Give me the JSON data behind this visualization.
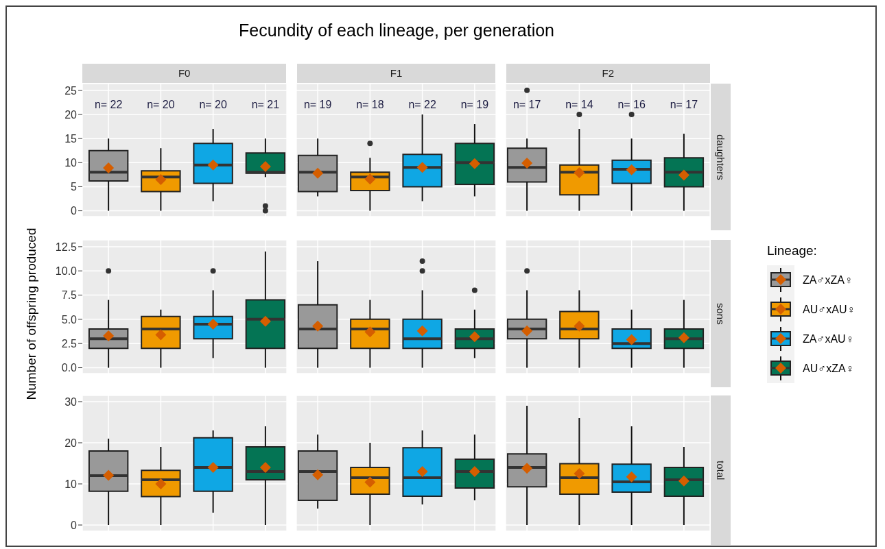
{
  "chart_data": [
    {
      "type": "box",
      "title": "Fecundity of each lineage, per generation",
      "y2label": "daughters",
      "categories": [
        null,
        null,
        null,
        null,
        null,
        null,
        null,
        null,
        null,
        null,
        null,
        null
      ],
      "ylim": [
        -1.2,
        26.4
      ],
      "yticks": [
        0,
        5,
        10,
        15,
        20,
        25
      ],
      "grid": true,
      "annotations": [
        "F0",
        "F1",
        "F2",
        "n= 22",
        "n= 20",
        "n= 20",
        "n= 21",
        "n= 19",
        "n= 18",
        "n= 22",
        "n= 19",
        "n= 17",
        "n= 14",
        "n= 16",
        "n= 17"
      ],
      "series": [
        {
          "color": "#999999",
          "boxes": [
            {
              "low": 0,
              "q1": 6.2,
              "median": 8,
              "q3": 12.5,
              "high": 15,
              "mean": 8.9
            },
            null,
            null,
            null,
            {
              "low": 3,
              "q1": 4,
              "median": 8,
              "q3": 11.5,
              "high": 15,
              "mean": 7.8
            },
            null,
            null,
            null,
            {
              "low": 0,
              "q1": 6,
              "median": 9,
              "q3": 13,
              "high": 15,
              "mean": 9.9,
              "outliers": [
                25
              ]
            },
            null,
            null,
            null
          ]
        },
        {
          "color": "#f09a00",
          "boxes": [
            null,
            {
              "low": 0,
              "q1": 4,
              "median": 7,
              "q3": 8.3,
              "high": 13,
              "mean": 6.5
            },
            null,
            null,
            null,
            {
              "low": 0,
              "q1": 4.2,
              "median": 7,
              "q3": 8,
              "high": 11,
              "mean": 6.6,
              "outliers": [
                14
              ]
            },
            null,
            null,
            null,
            {
              "low": 0,
              "q1": 3.3,
              "median": 8,
              "q3": 9.5,
              "high": 17,
              "mean": 7.9,
              "outliers": [
                20
              ]
            },
            null,
            null
          ]
        },
        {
          "color": "#0fa7e4",
          "boxes": [
            null,
            null,
            {
              "low": 2,
              "q1": 5.7,
              "median": 9.5,
              "q3": 14,
              "high": 17,
              "mean": 9.5
            },
            null,
            null,
            null,
            {
              "low": 2,
              "q1": 5,
              "median": 9,
              "q3": 11.7,
              "high": 20,
              "mean": 9
            },
            null,
            null,
            null,
            {
              "low": 0,
              "q1": 5.7,
              "median": 8.6,
              "q3": 10.5,
              "high": 15,
              "mean": 8.5,
              "outliers": [
                20
              ]
            },
            null
          ]
        },
        {
          "color": "#047454",
          "boxes": [
            null,
            null,
            null,
            {
              "low": 7,
              "q1": 7.8,
              "median": 8,
              "q3": 12,
              "high": 15,
              "mean": 9.2,
              "outliers": [
                0,
                1
              ]
            },
            null,
            null,
            null,
            {
              "low": 3,
              "q1": 5.5,
              "median": 10,
              "q3": 14,
              "high": 18,
              "mean": 9.8
            },
            null,
            null,
            null,
            {
              "low": 0,
              "q1": 5,
              "median": 8,
              "q3": 11,
              "high": 16,
              "mean": 7.4
            }
          ]
        }
      ]
    },
    {
      "type": "box",
      "ylabel": "Number of offspring produced",
      "y2label": "sons",
      "legend": "right",
      "legend_title": "Lineage:",
      "categories": [
        null,
        null,
        null,
        null,
        null,
        null,
        null,
        null,
        null,
        null,
        null,
        null
      ],
      "ylim": [
        -0.6,
        13.2
      ],
      "yticks": [
        {
          "value": 0,
          "label": "0.0"
        },
        2.5,
        {
          "value": 5,
          "label": "5.0"
        },
        7.5,
        {
          "value": 10,
          "label": "10.0"
        },
        12.5
      ],
      "grid": true,
      "series": [
        {
          "name": "ZA♂xZA♀",
          "color": "#999999",
          "boxes": [
            {
              "low": 0,
              "q1": 2,
              "median": 3,
              "q3": 4,
              "high": 7,
              "mean": 3.3,
              "outliers": [
                10
              ]
            },
            null,
            null,
            null,
            {
              "low": 0,
              "q1": 2,
              "median": 4,
              "q3": 6.5,
              "high": 11,
              "mean": 4.3
            },
            null,
            null,
            null,
            {
              "low": 0,
              "q1": 3,
              "median": 4,
              "q3": 5,
              "high": 8,
              "mean": 3.8,
              "outliers": [
                10
              ]
            },
            null,
            null,
            null
          ]
        },
        {
          "name": "AU♂xAU♀",
          "color": "#f09a00",
          "boxes": [
            null,
            {
              "low": 0,
              "q1": 2,
              "median": 4,
              "q3": 5.3,
              "high": 6,
              "mean": 3.4
            },
            null,
            null,
            null,
            {
              "low": 0,
              "q1": 2,
              "median": 4,
              "q3": 5,
              "high": 7,
              "mean": 3.7
            },
            null,
            null,
            null,
            {
              "low": 0,
              "q1": 3,
              "median": 4,
              "q3": 5.8,
              "high": 8,
              "mean": 4.3
            },
            null,
            null
          ]
        },
        {
          "name": "ZA♂xAU♀",
          "color": "#0fa7e4",
          "boxes": [
            null,
            null,
            {
              "low": 1,
              "q1": 3,
              "median": 4.5,
              "q3": 5.3,
              "high": 8,
              "mean": 4.5,
              "outliers": [
                10
              ]
            },
            null,
            null,
            null,
            {
              "low": 0,
              "q1": 2,
              "median": 3,
              "q3": 5,
              "high": 8,
              "mean": 3.8,
              "outliers": [
                10,
                11
              ]
            },
            null,
            null,
            null,
            {
              "low": 0,
              "q1": 2,
              "median": 2.5,
              "q3": 4,
              "high": 6,
              "mean": 2.9
            },
            null
          ]
        },
        {
          "name": "AU♂xZA♀",
          "color": "#047454",
          "boxes": [
            null,
            null,
            null,
            {
              "low": 0,
              "q1": 2,
              "median": 5,
              "q3": 7,
              "high": 12,
              "mean": 4.8
            },
            null,
            null,
            null,
            {
              "low": 1,
              "q1": 2,
              "median": 3,
              "q3": 4,
              "high": 6,
              "mean": 3.2,
              "outliers": [
                8
              ]
            },
            null,
            null,
            null,
            {
              "low": 0,
              "q1": 2,
              "median": 3,
              "q3": 4,
              "high": 7,
              "mean": 3.1
            }
          ]
        }
      ]
    },
    {
      "type": "box",
      "y2label": "total",
      "categories": [
        null,
        null,
        null,
        null,
        null,
        null,
        null,
        null,
        null,
        null,
        null,
        null
      ],
      "ylim": [
        -1.5,
        31.5
      ],
      "yticks": [
        0,
        10,
        20,
        30
      ],
      "grid": true,
      "series": [
        {
          "color": "#999999",
          "boxes": [
            {
              "low": 0,
              "q1": 8.2,
              "median": 12,
              "q3": 18,
              "high": 21,
              "mean": 12.1
            },
            null,
            null,
            null,
            {
              "low": 4,
              "q1": 6,
              "median": 13,
              "q3": 18,
              "high": 22,
              "mean": 12.2
            },
            null,
            null,
            null,
            {
              "low": 0,
              "q1": 9.3,
              "median": 14,
              "q3": 17.3,
              "high": 29,
              "mean": 13.8
            },
            null,
            null,
            null
          ]
        },
        {
          "color": "#f09a00",
          "boxes": [
            null,
            {
              "low": 0,
              "q1": 6.9,
              "median": 11,
              "q3": 13.3,
              "high": 19,
              "mean": 10
            },
            null,
            null,
            null,
            {
              "low": 0,
              "q1": 7.5,
              "median": 11.5,
              "q3": 14,
              "high": 20,
              "mean": 10.4
            },
            null,
            null,
            null,
            {
              "low": 0,
              "q1": 7.5,
              "median": 11.5,
              "q3": 14.9,
              "high": 26,
              "mean": 12.5
            },
            null,
            null
          ]
        },
        {
          "color": "#0fa7e4",
          "boxes": [
            null,
            null,
            {
              "low": 3,
              "q1": 8.2,
              "median": 14,
              "q3": 21.2,
              "high": 23,
              "mean": 14
            },
            null,
            null,
            null,
            {
              "low": 5,
              "q1": 7,
              "median": 11.5,
              "q3": 18.8,
              "high": 23,
              "mean": 13
            },
            null,
            null,
            null,
            {
              "low": 0,
              "q1": 8,
              "median": 10.5,
              "q3": 14.8,
              "high": 24,
              "mean": 11.7
            },
            null
          ]
        },
        {
          "color": "#047454",
          "boxes": [
            null,
            null,
            null,
            {
              "low": 0,
              "q1": 11,
              "median": 13,
              "q3": 19,
              "high": 24,
              "mean": 14
            },
            null,
            null,
            null,
            {
              "low": 6,
              "q1": 9,
              "median": 13,
              "q3": 16,
              "high": 22,
              "mean": 13
            },
            null,
            null,
            null,
            {
              "low": 0,
              "q1": 7,
              "median": 11,
              "q3": 14,
              "high": 19,
              "mean": 10.7
            }
          ]
        }
      ]
    }
  ]
}
